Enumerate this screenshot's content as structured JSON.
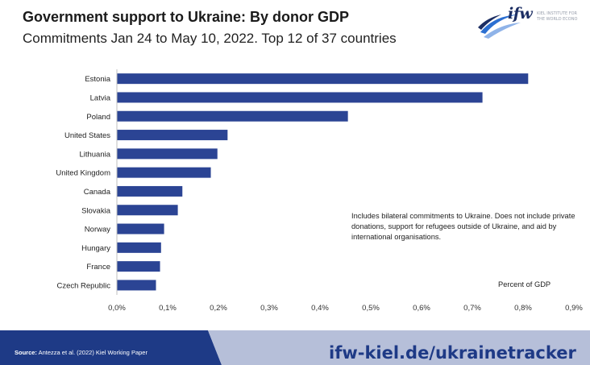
{
  "title": "Government support to Ukraine: By donor GDP",
  "subtitle": "Commitments Jan 24 to May 10, 2022. Top 12 of 37 countries",
  "logo": {
    "mark": "ifw",
    "line1": "KIEL INSTITUTE FOR",
    "line2": "THE WORLD ECONO"
  },
  "note": "Includes bilateral commitments to Ukraine. Does not include private donations, support for refugees outside of Ukraine, and aid by international organisations.",
  "unit_label": "Percent of GDP",
  "footer": {
    "source_label": "Source:",
    "source_text": " Antezza et al. (2022) Kiel Working Paper",
    "url": "ifw-kiel.de/ukrainetracker"
  },
  "colors": {
    "bar": "#2b4494",
    "footer_dark": "#1e3a86",
    "footer_light": "#b6bfd9"
  },
  "chart_data": {
    "type": "bar",
    "orientation": "horizontal",
    "categories": [
      "Estonia",
      "Latvia",
      "Poland",
      "United States",
      "Lithuania",
      "United Kingdom",
      "Canada",
      "Slovakia",
      "Norway",
      "Hungary",
      "France",
      "Czech Republic"
    ],
    "values": [
      0.81,
      0.72,
      0.455,
      0.218,
      0.198,
      0.185,
      0.129,
      0.12,
      0.093,
      0.087,
      0.085,
      0.077
    ],
    "xlim": [
      0,
      0.9
    ],
    "xticks": [
      "0,0%",
      "0,1%",
      "0,2%",
      "0,3%",
      "0,4%",
      "0,5%",
      "0,6%",
      "0,7%",
      "0,8%",
      "0,9%"
    ],
    "grid": false,
    "legend": "none"
  }
}
